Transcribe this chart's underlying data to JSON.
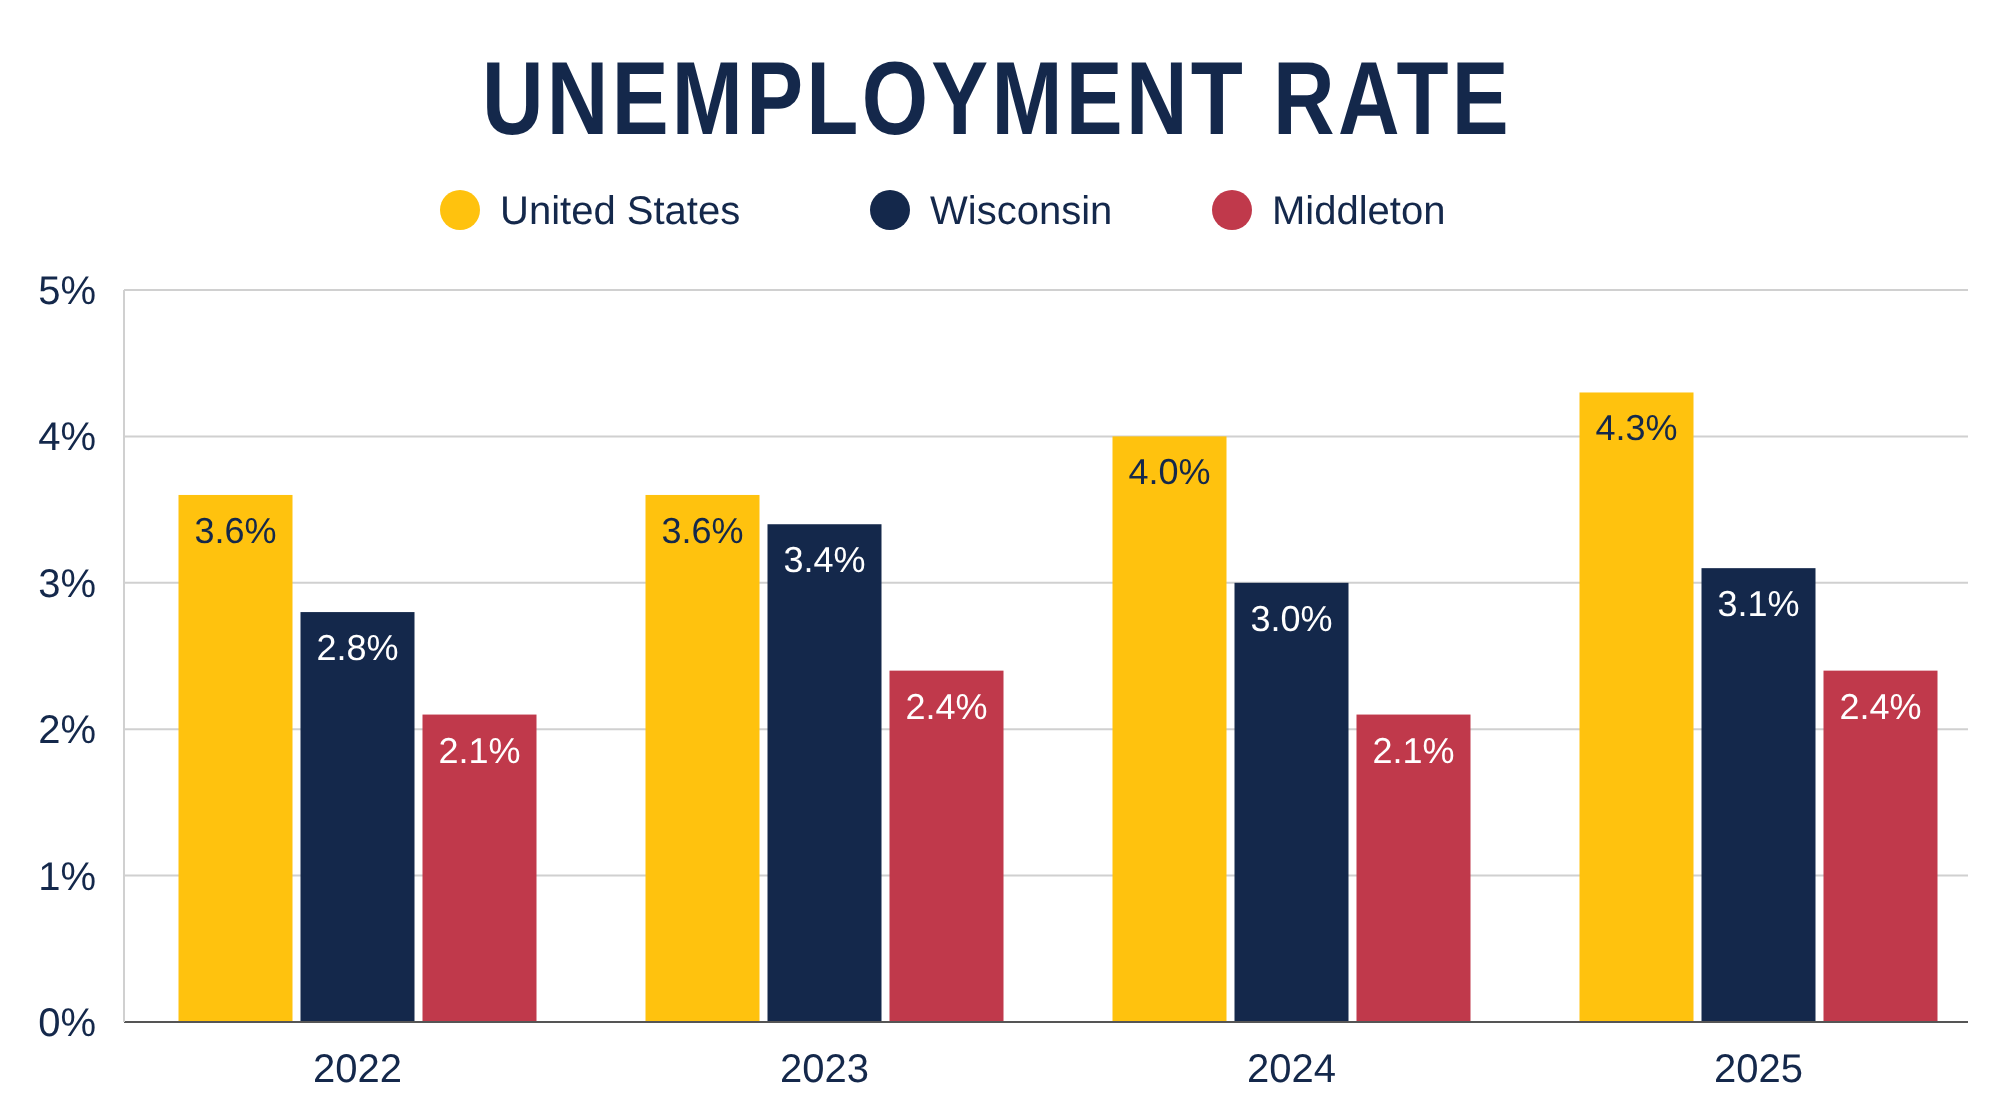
{
  "chart_data": {
    "type": "bar",
    "title": "UNEMPLOYMENT RATE",
    "categories": [
      "2022",
      "2023",
      "2024",
      "2025"
    ],
    "series": [
      {
        "name": "United States",
        "color": "#ffc20e",
        "values": [
          3.6,
          3.6,
          4.0,
          4.3
        ],
        "value_labels": [
          "3.6%",
          "3.6%",
          "4.0%",
          "4.3%"
        ]
      },
      {
        "name": "Wisconsin",
        "color": "#14284b",
        "values": [
          2.8,
          3.4,
          3.0,
          3.1
        ],
        "value_labels": [
          "2.8%",
          "3.4%",
          "3.0%",
          "3.1%"
        ]
      },
      {
        "name": "Middleton",
        "color": "#c0394b",
        "values": [
          2.1,
          2.4,
          2.1,
          2.4
        ],
        "value_labels": [
          "2.1%",
          "2.4%",
          "2.1%",
          "2.4%"
        ]
      }
    ],
    "ylim": [
      0,
      5
    ],
    "yticks": [
      {
        "value": 0,
        "label": "0%"
      },
      {
        "value": 1,
        "label": "1%"
      },
      {
        "value": 2,
        "label": "2%"
      },
      {
        "value": 3,
        "label": "3%"
      },
      {
        "value": 4,
        "label": "4%"
      },
      {
        "value": 5,
        "label": "5%"
      }
    ],
    "grid": "y",
    "legend": "top"
  }
}
